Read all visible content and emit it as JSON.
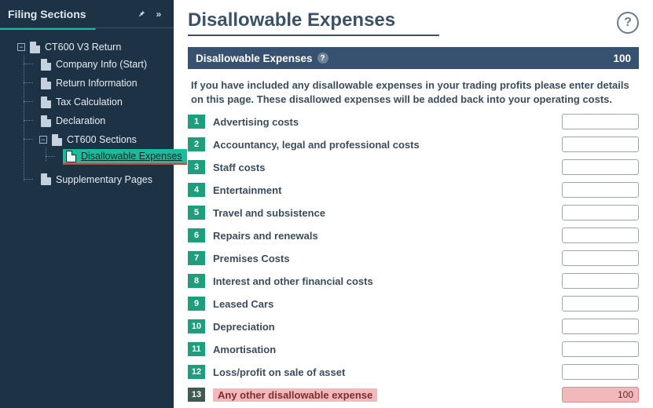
{
  "sidebar": {
    "title": "Filing Sections",
    "root": {
      "label": "CT600 V3 Return",
      "children": [
        {
          "label": "Company Info (Start)"
        },
        {
          "label": "Return Information"
        },
        {
          "label": "Tax Calculation"
        },
        {
          "label": "Declaration"
        },
        {
          "label": "CT600 Sections",
          "children": [
            {
              "label": "Disallowable Expenses",
              "active": true
            }
          ]
        },
        {
          "label": "Supplementary Pages"
        }
      ]
    }
  },
  "page": {
    "title": "Disallowable Expenses",
    "section_title": "Disallowable Expenses",
    "section_total": "100",
    "intro": "If you have included any disallowable expenses in your trading profits please enter details on this page. These disallowed expenses will be added back into your operating costs."
  },
  "rows": [
    {
      "n": "1",
      "label": "Advertising costs",
      "value": ""
    },
    {
      "n": "2",
      "label": "Accountancy, legal and professional costs",
      "value": ""
    },
    {
      "n": "3",
      "label": "Staff costs",
      "value": ""
    },
    {
      "n": "4",
      "label": "Entertainment",
      "value": ""
    },
    {
      "n": "5",
      "label": "Travel and subsistence",
      "value": ""
    },
    {
      "n": "6",
      "label": "Repairs and renewals",
      "value": ""
    },
    {
      "n": "7",
      "label": "Premises Costs",
      "value": ""
    },
    {
      "n": "8",
      "label": "Interest and other financial costs",
      "value": ""
    },
    {
      "n": "9",
      "label": "Leased Cars",
      "value": ""
    },
    {
      "n": "10",
      "label": "Depreciation",
      "value": ""
    },
    {
      "n": "11",
      "label": "Amortisation",
      "value": ""
    },
    {
      "n": "12",
      "label": "Loss/profit on sale of asset",
      "value": ""
    },
    {
      "n": "13",
      "label": "Any other disallowable expense",
      "value": "100",
      "highlight": true
    }
  ],
  "colors": {
    "sidebar_bg": "#1e3246",
    "accent_green": "#1abc9c",
    "section_bar": "#365270",
    "row_num_bg": "#1f9e7e",
    "highlight_bg": "#f3b8ba"
  }
}
